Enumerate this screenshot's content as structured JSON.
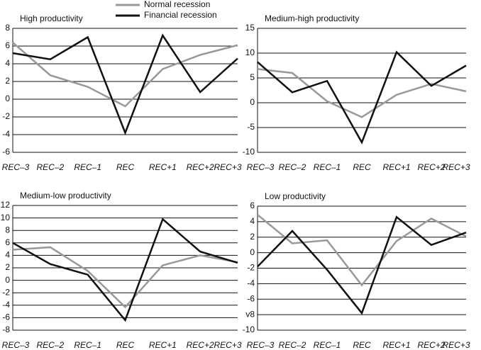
{
  "chart_data": [
    {
      "type": "line",
      "title": "High productivity",
      "categories": [
        "REC–3",
        "REC–2",
        "REC–1",
        "REC",
        "REC+1",
        "REC+2",
        "REC+3"
      ],
      "series": [
        {
          "name": "Normal recession",
          "color": "#999999",
          "values": [
            6.4,
            2.7,
            1.4,
            -0.8,
            3.4,
            5.0,
            6.1
          ]
        },
        {
          "name": "Financial recession",
          "color": "#111111",
          "values": [
            5.2,
            4.5,
            7.0,
            -3.8,
            7.2,
            0.8,
            4.6
          ]
        }
      ],
      "ylim": [
        -6,
        8
      ],
      "yticks": [
        -6,
        -4,
        -2,
        0,
        2,
        4,
        6,
        8
      ],
      "grid": true
    },
    {
      "type": "line",
      "title": "Medium-high productivity",
      "categories": [
        "REC–3",
        "REC–2",
        "REC–1",
        "REC",
        "REC+1",
        "REC+2",
        "REC+3"
      ],
      "series": [
        {
          "color": "#999999",
          "values": [
            6.8,
            6.0,
            0.3,
            -2.9,
            1.6,
            3.8,
            2.3
          ]
        },
        {
          "color": "#111111",
          "values": [
            8.2,
            2.1,
            4.4,
            -8.0,
            10.2,
            3.4,
            7.5
          ]
        }
      ],
      "ylim": [
        -10,
        15
      ],
      "yticks": [
        -10,
        -5,
        0,
        5,
        10,
        15
      ],
      "grid": true
    },
    {
      "type": "line",
      "title": "Medium-low productivity",
      "categories": [
        "REC–3",
        "REC–2",
        "REC–1",
        "REC",
        "REC+1",
        "REC+2",
        "REC+3"
      ],
      "series": [
        {
          "color": "#999999",
          "values": [
            4.9,
            5.3,
            1.5,
            -4.3,
            2.4,
            4.0,
            2.9
          ]
        },
        {
          "color": "#111111",
          "values": [
            6.0,
            2.6,
            0.9,
            -6.4,
            9.8,
            4.6,
            2.8
          ]
        }
      ],
      "ylim": [
        -8,
        12
      ],
      "yticks": [
        -8,
        -6,
        -4,
        -2,
        0,
        2,
        4,
        6,
        8,
        10,
        12
      ],
      "grid": true
    },
    {
      "type": "line",
      "title": "Low productivity",
      "categories": [
        "REC–3",
        "REC–2",
        "REC–1",
        "REC",
        "REC+1",
        "REC+2",
        "REC+3"
      ],
      "series": [
        {
          "color": "#999999",
          "values": [
            4.9,
            1.2,
            1.6,
            -4.2,
            1.5,
            4.4,
            2.1
          ]
        },
        {
          "color": "#111111",
          "values": [
            -1.8,
            2.8,
            -2.2,
            -7.8,
            4.6,
            1.0,
            2.6
          ]
        }
      ],
      "ylim": [
        -10,
        6
      ],
      "yticks": [
        -10,
        {
          "value": -8,
          "label": "v8"
        },
        -6,
        -4,
        -2,
        0,
        2,
        4,
        6
      ],
      "grid": true
    }
  ]
}
